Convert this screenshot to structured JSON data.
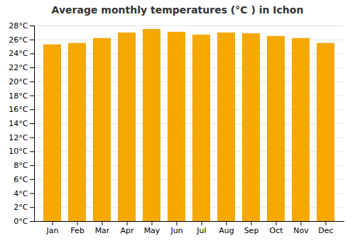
{
  "chart_data": {
    "type": "bar",
    "title": "Average monthly temperatures (°C ) in Ichon",
    "categories": [
      "Jan",
      "Feb",
      "Mar",
      "Apr",
      "May",
      "Jun",
      "Jul",
      "Aug",
      "Sep",
      "Oct",
      "Nov",
      "Dec"
    ],
    "values": [
      25.3,
      25.5,
      26.2,
      27.0,
      27.5,
      27.1,
      26.7,
      27.0,
      26.9,
      26.5,
      26.2,
      25.5
    ],
    "color": "#F4A800",
    "ylim": [
      0,
      28
    ],
    "yticks": [
      {
        "value": 0,
        "label": "0°C"
      },
      {
        "value": 2,
        "label": "2°C"
      },
      {
        "value": 4,
        "label": "4°C"
      },
      {
        "value": 6,
        "label": "6°C"
      },
      {
        "value": 8,
        "label": "8°C"
      },
      {
        "value": 10,
        "label": "10°C"
      },
      {
        "value": 12,
        "label": "12°C"
      },
      {
        "value": 14,
        "label": "14°C"
      },
      {
        "value": 16,
        "label": "16°C"
      },
      {
        "value": 18,
        "label": "18°C"
      },
      {
        "value": 20,
        "label": "20°C"
      },
      {
        "value": 22,
        "label": "22°C"
      },
      {
        "value": 24,
        "label": "24°C"
      },
      {
        "value": 26,
        "label": "26°C"
      },
      {
        "value": 28,
        "label": "28°C"
      }
    ],
    "grid": true
  }
}
